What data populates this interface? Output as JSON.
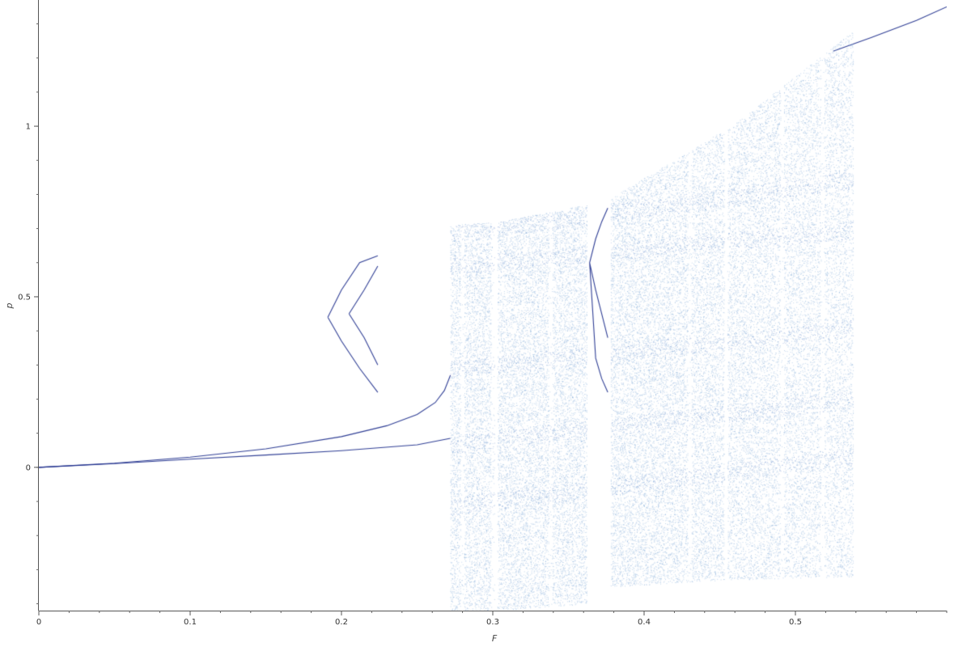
{
  "chart_data": {
    "type": "scatter",
    "title": "",
    "xlabel": "F",
    "ylabel": "p",
    "xlim": [
      0,
      0.6
    ],
    "ylim": [
      -0.42,
      1.37
    ],
    "x_ticks": [
      {
        "value": 0,
        "label": "0"
      },
      {
        "value": 0.1,
        "label": "0.1"
      },
      {
        "value": 0.2,
        "label": "0.2"
      },
      {
        "value": 0.3,
        "label": "0.3"
      },
      {
        "value": 0.4,
        "label": "0.4"
      },
      {
        "value": 0.5,
        "label": "0.5"
      }
    ],
    "x_minor_step": 0.02,
    "y_ticks": [
      {
        "value": 0,
        "label": "0"
      },
      {
        "value": 0.5,
        "label": "0.5"
      },
      {
        "value": 1,
        "label": "1"
      }
    ],
    "y_minor_step": 0.1,
    "grid": false,
    "legend": "none",
    "colors": {
      "dense": "#1a2a8a",
      "sparse": "#8fb4dc",
      "band": "#5f82c8"
    },
    "series": [
      {
        "kind": "branch",
        "points": [
          [
            0,
            0
          ],
          [
            0.05,
            0.011
          ],
          [
            0.1,
            0.024
          ],
          [
            0.15,
            0.036
          ],
          [
            0.2,
            0.049
          ],
          [
            0.25,
            0.066
          ],
          [
            0.272,
            0.085
          ]
        ]
      },
      {
        "kind": "branch",
        "points": [
          [
            0,
            0
          ],
          [
            0.05,
            0.012
          ],
          [
            0.1,
            0.03
          ],
          [
            0.15,
            0.054
          ],
          [
            0.2,
            0.09
          ],
          [
            0.23,
            0.122
          ],
          [
            0.25,
            0.155
          ],
          [
            0.262,
            0.19
          ],
          [
            0.268,
            0.225
          ],
          [
            0.272,
            0.27
          ]
        ]
      },
      {
        "kind": "branch",
        "points": [
          [
            0.525,
            1.22
          ],
          [
            0.55,
            1.26
          ],
          [
            0.58,
            1.31
          ],
          [
            0.6,
            1.35
          ]
        ]
      },
      {
        "kind": "loops",
        "points": [
          [
            0.191,
            0.44
          ],
          [
            0.2,
            0.52
          ],
          [
            0.212,
            0.6
          ],
          [
            0.224,
            0.62
          ],
          [
            0.191,
            0.44
          ],
          [
            0.2,
            0.37
          ],
          [
            0.212,
            0.29
          ],
          [
            0.224,
            0.22
          ],
          [
            0.205,
            0.45
          ],
          [
            0.215,
            0.52
          ],
          [
            0.224,
            0.59
          ],
          [
            0.205,
            0.45
          ],
          [
            0.215,
            0.38
          ],
          [
            0.224,
            0.3
          ]
        ]
      },
      {
        "kind": "chaotic",
        "bands": [
          {
            "x": [
              0.272,
              0.301
            ],
            "ymin": [
              -0.42,
              -0.42
            ],
            "ymax": [
              0.71,
              0.72
            ]
          },
          {
            "x": [
              0.303,
              0.362
            ],
            "ymin": [
              -0.42,
              -0.4
            ],
            "ymax": [
              0.72,
              0.77
            ]
          },
          {
            "x": [
              0.378,
              0.453
            ],
            "ymin": [
              -0.35,
              -0.33
            ],
            "ymax": [
              0.79,
              0.99
            ]
          },
          {
            "x": [
              0.455,
              0.538
            ],
            "ymin": [
              -0.33,
              -0.32
            ],
            "ymax": [
              0.99,
              1.28
            ]
          }
        ],
        "windows": [
          0.28,
          0.3,
          0.302,
          0.338,
          0.366,
          0.376,
          0.43,
          0.454,
          0.491,
          0.518
        ]
      },
      {
        "kind": "period-window",
        "points": [
          [
            0.364,
            0.6
          ],
          [
            0.368,
            0.67
          ],
          [
            0.372,
            0.72
          ],
          [
            0.376,
            0.76
          ],
          [
            0.364,
            0.6
          ],
          [
            0.368,
            0.52
          ],
          [
            0.372,
            0.45
          ],
          [
            0.376,
            0.38
          ],
          [
            0.364,
            0.6
          ],
          [
            0.368,
            0.32
          ],
          [
            0.372,
            0.26
          ],
          [
            0.376,
            0.22
          ]
        ]
      }
    ]
  }
}
